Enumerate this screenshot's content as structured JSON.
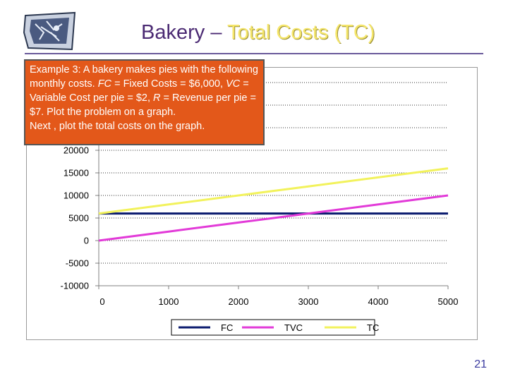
{
  "header": {
    "title_part1": "Bakery – ",
    "title_part2": "Total Costs (TC)"
  },
  "callout": {
    "seg1": "Example 3:  A bakery makes pies with the following monthly costs.  ",
    "fc_abbr": "FC",
    "seg2": " = Fixed Costs = $6,000, ",
    "vc_abbr": "VC",
    "seg3": " = Variable Cost per pie = $2, ",
    "r_abbr": "R",
    "seg4": " = Revenue per pie = $7.  Plot the problem on a graph.",
    "line2": "Next , plot the total costs on the graph."
  },
  "chart_data": {
    "type": "line",
    "x": [
      0,
      1000,
      2000,
      3000,
      4000,
      5000
    ],
    "series": [
      {
        "name": "FC",
        "color": "#0a1a6e",
        "values": [
          6000,
          6000,
          6000,
          6000,
          6000,
          6000
        ]
      },
      {
        "name": "TVC",
        "color": "#e23ad8",
        "values": [
          0,
          2000,
          4000,
          6000,
          8000,
          10000
        ]
      },
      {
        "name": "TC",
        "color": "#f2f25c",
        "values": [
          6000,
          8000,
          10000,
          12000,
          14000,
          16000
        ]
      }
    ],
    "xlim": [
      0,
      5000
    ],
    "ylim": [
      -10000,
      20000
    ],
    "xticks": [
      "0",
      "1000",
      "2000",
      "3000",
      "4000",
      "5000"
    ],
    "yticks": [
      "20000",
      "15000",
      "10000",
      "5000",
      "0",
      "-5000",
      "-10000"
    ],
    "ytick_values": [
      20000,
      15000,
      10000,
      5000,
      0,
      -5000,
      -10000
    ],
    "grid": true,
    "legend_position": "bottom"
  },
  "footer": {
    "page_number": "21"
  }
}
